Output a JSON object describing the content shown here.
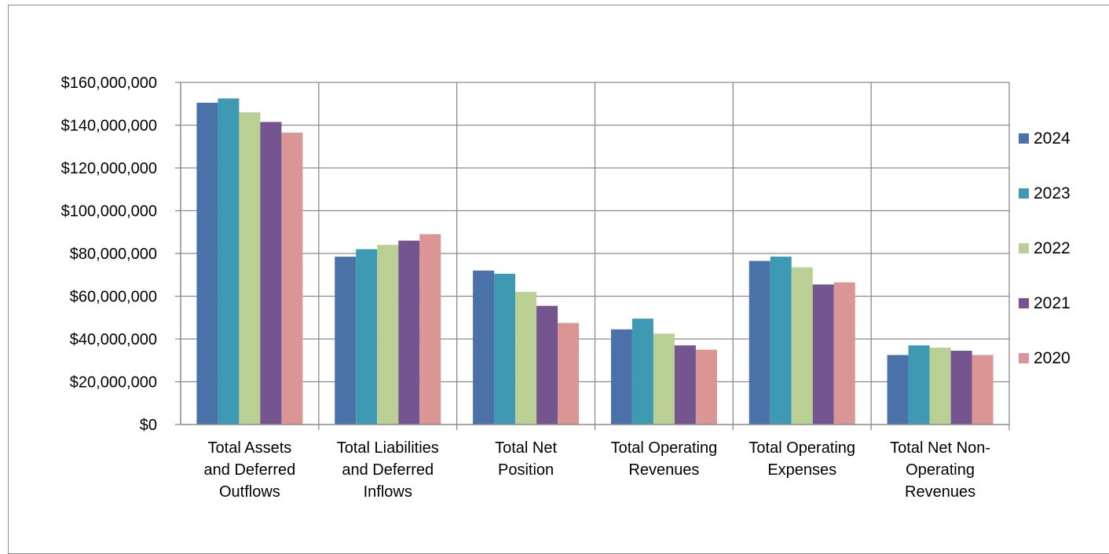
{
  "chart_data": {
    "type": "bar",
    "categories": [
      "Total Assets and Deferred Outflows",
      "Total Liabilities and Deferred Inflows",
      "Total Net Position",
      "Total Operating Revenues",
      "Total Operating Expenses",
      "Total Net Non-Operating Revenues"
    ],
    "category_lines": [
      [
        "Total Assets",
        "and Deferred",
        "Outflows"
      ],
      [
        "Total Liabilities",
        "and Deferred",
        "Inflows"
      ],
      [
        "Total Net",
        "Position"
      ],
      [
        "Total Operating",
        "Revenues"
      ],
      [
        "Total Operating",
        "Expenses"
      ],
      [
        "Total Net Non-",
        "Operating",
        "Revenues"
      ]
    ],
    "series": [
      {
        "name": "2024",
        "color": "#4a72a8",
        "values": [
          150500000,
          78500000,
          72000000,
          44500000,
          76500000,
          32500000
        ]
      },
      {
        "name": "2023",
        "color": "#3e9ab3",
        "values": [
          152500000,
          82000000,
          70500000,
          49500000,
          78500000,
          37000000
        ]
      },
      {
        "name": "2022",
        "color": "#b9cf94",
        "values": [
          146000000,
          84000000,
          62000000,
          42500000,
          73500000,
          36000000
        ]
      },
      {
        "name": "2021",
        "color": "#745590",
        "values": [
          141500000,
          86000000,
          55500000,
          37000000,
          65500000,
          34500000
        ]
      },
      {
        "name": "2020",
        "color": "#d99694",
        "values": [
          136500000,
          89000000,
          47500000,
          35000000,
          66500000,
          32500000
        ]
      }
    ],
    "ylim": [
      0,
      160000000
    ],
    "yticks": [
      0,
      20000000,
      40000000,
      60000000,
      80000000,
      100000000,
      120000000,
      140000000,
      160000000
    ],
    "ytick_labels": [
      "$0",
      "$20,000,000",
      "$40,000,000",
      "$60,000,000",
      "$80,000,000",
      "$100,000,000",
      "$120,000,000",
      "$140,000,000",
      "$160,000,000"
    ],
    "title": "",
    "xlabel": "",
    "ylabel": "",
    "grid": true,
    "legend_position": "right"
  }
}
